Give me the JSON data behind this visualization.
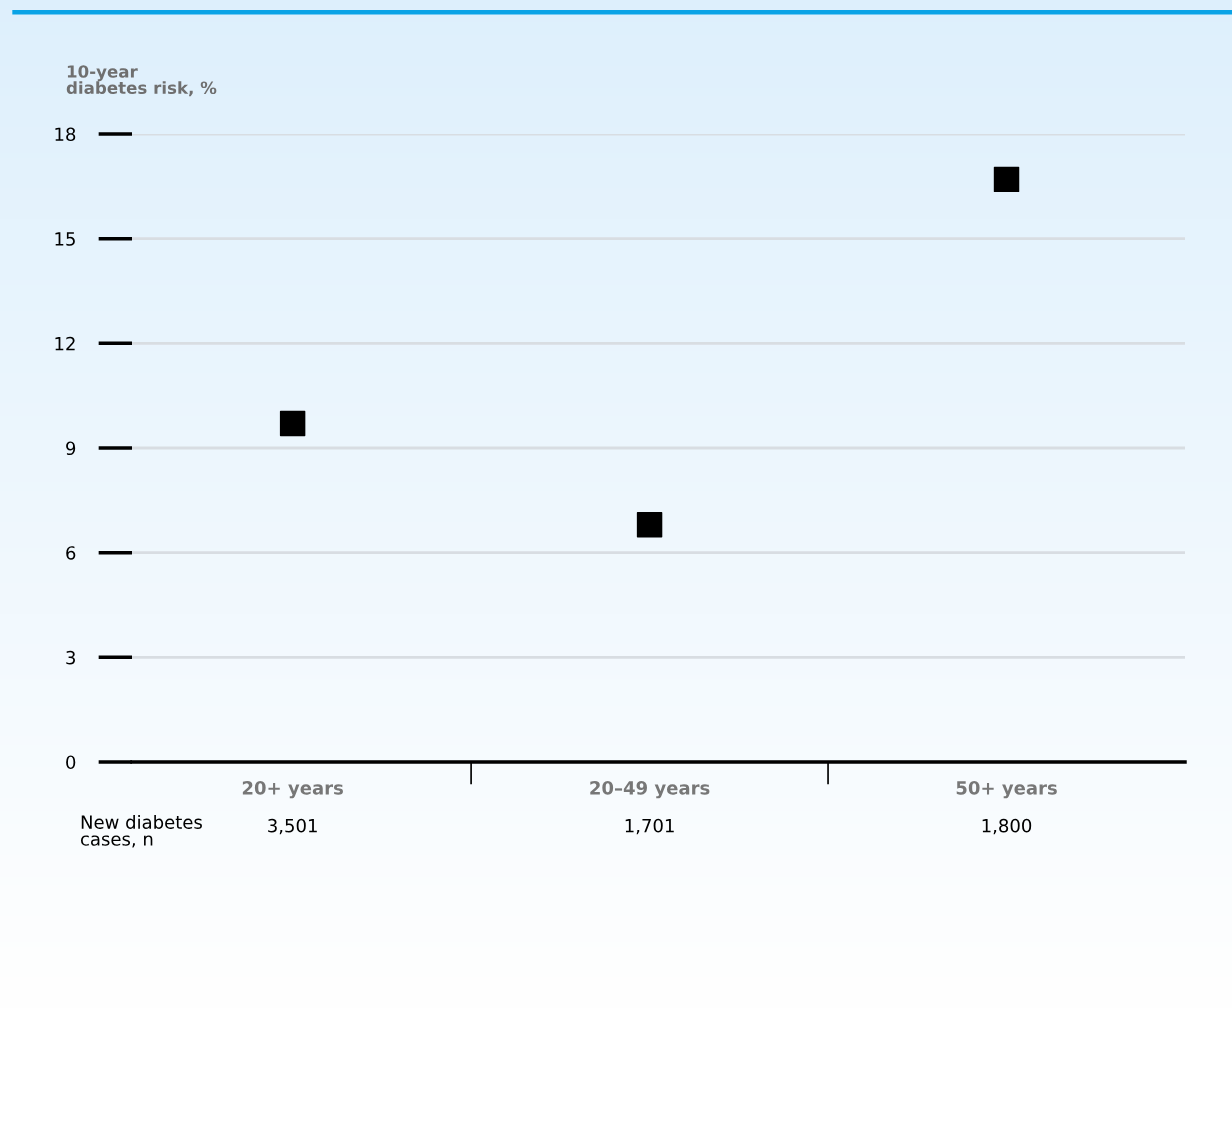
{
  "chart_data": {
    "type": "scatter",
    "ylabel": "10-year\ndiabetes risk, %",
    "categories": [
      "20+ years",
      "20–49 years",
      "50+ years"
    ],
    "series": [
      {
        "color": "#000000",
        "values": [
          9.7,
          6.8,
          16.7
        ]
      }
    ],
    "ylim": [
      0,
      18
    ],
    "yticks": [
      0,
      3,
      6,
      9,
      12,
      15,
      18
    ],
    "grid": "y",
    "marker": "square",
    "legend": false,
    "annotations": [
      "New diabetes\ncases, n",
      "3,501",
      "1,701",
      "1,800"
    ]
  }
}
